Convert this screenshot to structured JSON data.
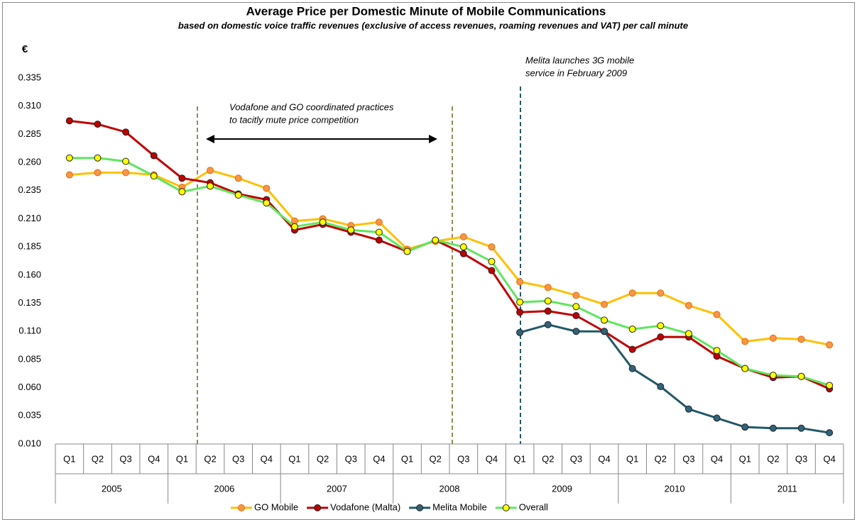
{
  "chart_data": {
    "type": "line",
    "title": "Average Price per Domestic Minute of Mobile Communications",
    "subtitle": "based on domestic voice traffic revenues (exclusive of access revenues, roaming revenues and VAT) per call minute",
    "y_label": "€",
    "categories": [
      "Q1",
      "Q2",
      "Q3",
      "Q4",
      "Q1",
      "Q2",
      "Q3",
      "Q4",
      "Q1",
      "Q2",
      "Q3",
      "Q4",
      "Q1",
      "Q2",
      "Q3",
      "Q4",
      "Q1",
      "Q2",
      "Q3",
      "Q4",
      "Q1",
      "Q2",
      "Q3",
      "Q4",
      "Q1",
      "Q2",
      "Q3",
      "Q4"
    ],
    "years": [
      "2005",
      "2006",
      "2007",
      "2008",
      "2009",
      "2010",
      "2011"
    ],
    "series": [
      {
        "name": "GO Mobile",
        "color": "#ffc000",
        "marker_color": "#f79646",
        "values": [
          0.249,
          0.251,
          0.251,
          0.249,
          0.238,
          0.253,
          0.246,
          0.237,
          0.208,
          0.21,
          0.204,
          0.207,
          0.183,
          0.19,
          0.194,
          0.185,
          0.154,
          0.149,
          0.142,
          0.134,
          0.144,
          0.144,
          0.133,
          0.125,
          0.101,
          0.104,
          0.103,
          0.098
        ]
      },
      {
        "name": "Vodafone (Malta)",
        "color": "#c00000",
        "marker_color": "#c00000",
        "values": [
          0.297,
          0.294,
          0.287,
          0.266,
          0.246,
          0.242,
          0.232,
          0.227,
          0.2,
          0.205,
          0.198,
          0.191,
          0.181,
          0.191,
          0.179,
          0.164,
          0.127,
          0.128,
          0.124,
          0.11,
          0.094,
          0.105,
          0.105,
          0.088,
          0.077,
          0.069,
          0.07,
          0.059
        ]
      },
      {
        "name": "Melita Mobile",
        "color": "#215968",
        "marker_color": "#31637a",
        "values": [
          null,
          null,
          null,
          null,
          null,
          null,
          null,
          null,
          null,
          null,
          null,
          null,
          null,
          null,
          null,
          null,
          0.109,
          0.116,
          0.11,
          0.11,
          0.077,
          0.061,
          0.041,
          0.033,
          0.025,
          0.024,
          0.024,
          0.02
        ]
      },
      {
        "name": "Overall",
        "color": "#5ee65e",
        "marker_color": "#ffff00",
        "values": [
          0.264,
          0.264,
          0.261,
          0.248,
          0.234,
          0.239,
          0.231,
          0.224,
          0.203,
          0.207,
          0.2,
          0.198,
          0.181,
          0.191,
          0.185,
          0.172,
          0.136,
          0.137,
          0.132,
          0.12,
          0.112,
          0.115,
          0.108,
          0.093,
          0.077,
          0.071,
          0.07,
          0.062
        ]
      }
    ],
    "ylim": [
      0.01,
      0.335
    ],
    "yticks": [
      {
        "value": 0.01,
        "label": "0.010"
      },
      {
        "value": 0.035,
        "label": "0.035"
      },
      {
        "value": 0.06,
        "label": "0.060"
      },
      {
        "value": 0.085,
        "label": "0.085"
      },
      {
        "value": 0.11,
        "label": "0.110"
      },
      {
        "value": 0.135,
        "label": "0.135"
      },
      {
        "value": 0.16,
        "label": "0.160"
      },
      {
        "value": 0.185,
        "label": "0.185"
      },
      {
        "value": 0.21,
        "label": "0.210"
      },
      {
        "value": 0.235,
        "label": "0.235"
      },
      {
        "value": 0.26,
        "label": "0.260"
      },
      {
        "value": 0.285,
        "label": "0.285"
      },
      {
        "value": 0.31,
        "label": "0.310"
      },
      {
        "value": 0.335,
        "label": "0.335"
      }
    ],
    "annotations": [
      {
        "lines": [
          "Vodafone and GO coordinated practices",
          "to tacitly mute price competition"
        ]
      },
      {
        "lines": [
          "Melita launches 3G mobile",
          "service in February 2009"
        ]
      }
    ],
    "legend": "bottom"
  }
}
